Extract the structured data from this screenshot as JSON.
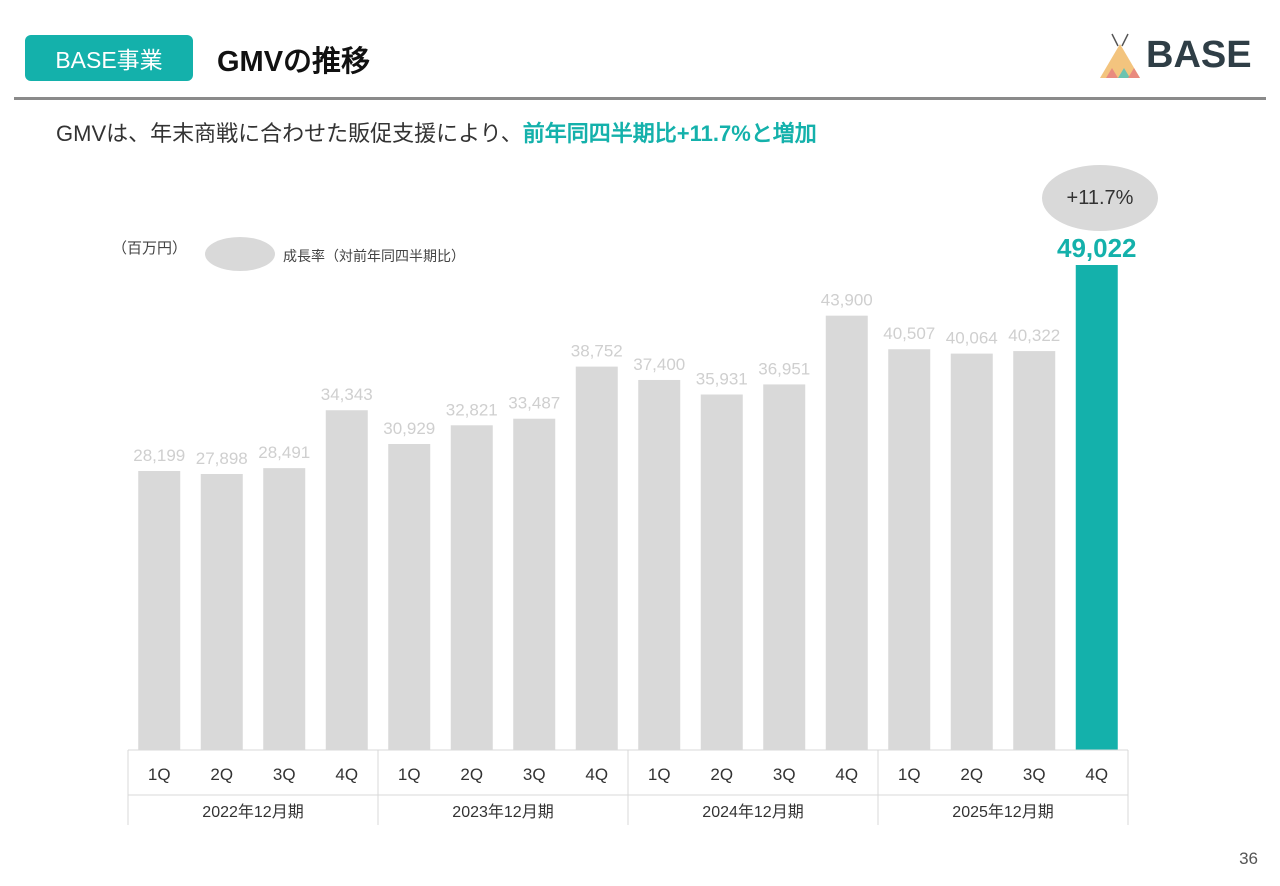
{
  "header": {
    "badge": "BASE事業",
    "title": "GMVの推移",
    "logo_text": "BASE"
  },
  "subtitle": {
    "prefix": "GMVは、年末商戦に合わせた販促支援により、",
    "highlight": "前年同四半期比+11.7%と増加"
  },
  "legend": {
    "unit": "（百万円）",
    "growth_label": "成長率（対前年同四半期比）"
  },
  "growth_bubble": "+11.7%",
  "colors": {
    "accent": "#14b1ab",
    "bar": "#d9d9d9",
    "bar_label": "#cfcfcf"
  },
  "chart_data": {
    "type": "bar",
    "unit": "百万円",
    "categories": [
      "1Q",
      "2Q",
      "3Q",
      "4Q",
      "1Q",
      "2Q",
      "3Q",
      "4Q",
      "1Q",
      "2Q",
      "3Q",
      "4Q",
      "1Q",
      "2Q",
      "3Q",
      "4Q"
    ],
    "groups": [
      "2022年12月期",
      "2023年12月期",
      "2024年12月期",
      "2025年12月期"
    ],
    "values": [
      28199,
      27898,
      28491,
      34343,
      30929,
      32821,
      33487,
      38752,
      37400,
      35931,
      36951,
      43900,
      40507,
      40064,
      40322,
      49022
    ],
    "labels": [
      "28,199",
      "27,898",
      "28,491",
      "34,343",
      "30,929",
      "32,821",
      "33,487",
      "38,752",
      "37,400",
      "35,931",
      "36,951",
      "43,900",
      "40,507",
      "40,064",
      "40,322",
      "49,022"
    ],
    "highlight_index": 15,
    "ylim": [
      0,
      49022
    ]
  },
  "page_number": "36"
}
